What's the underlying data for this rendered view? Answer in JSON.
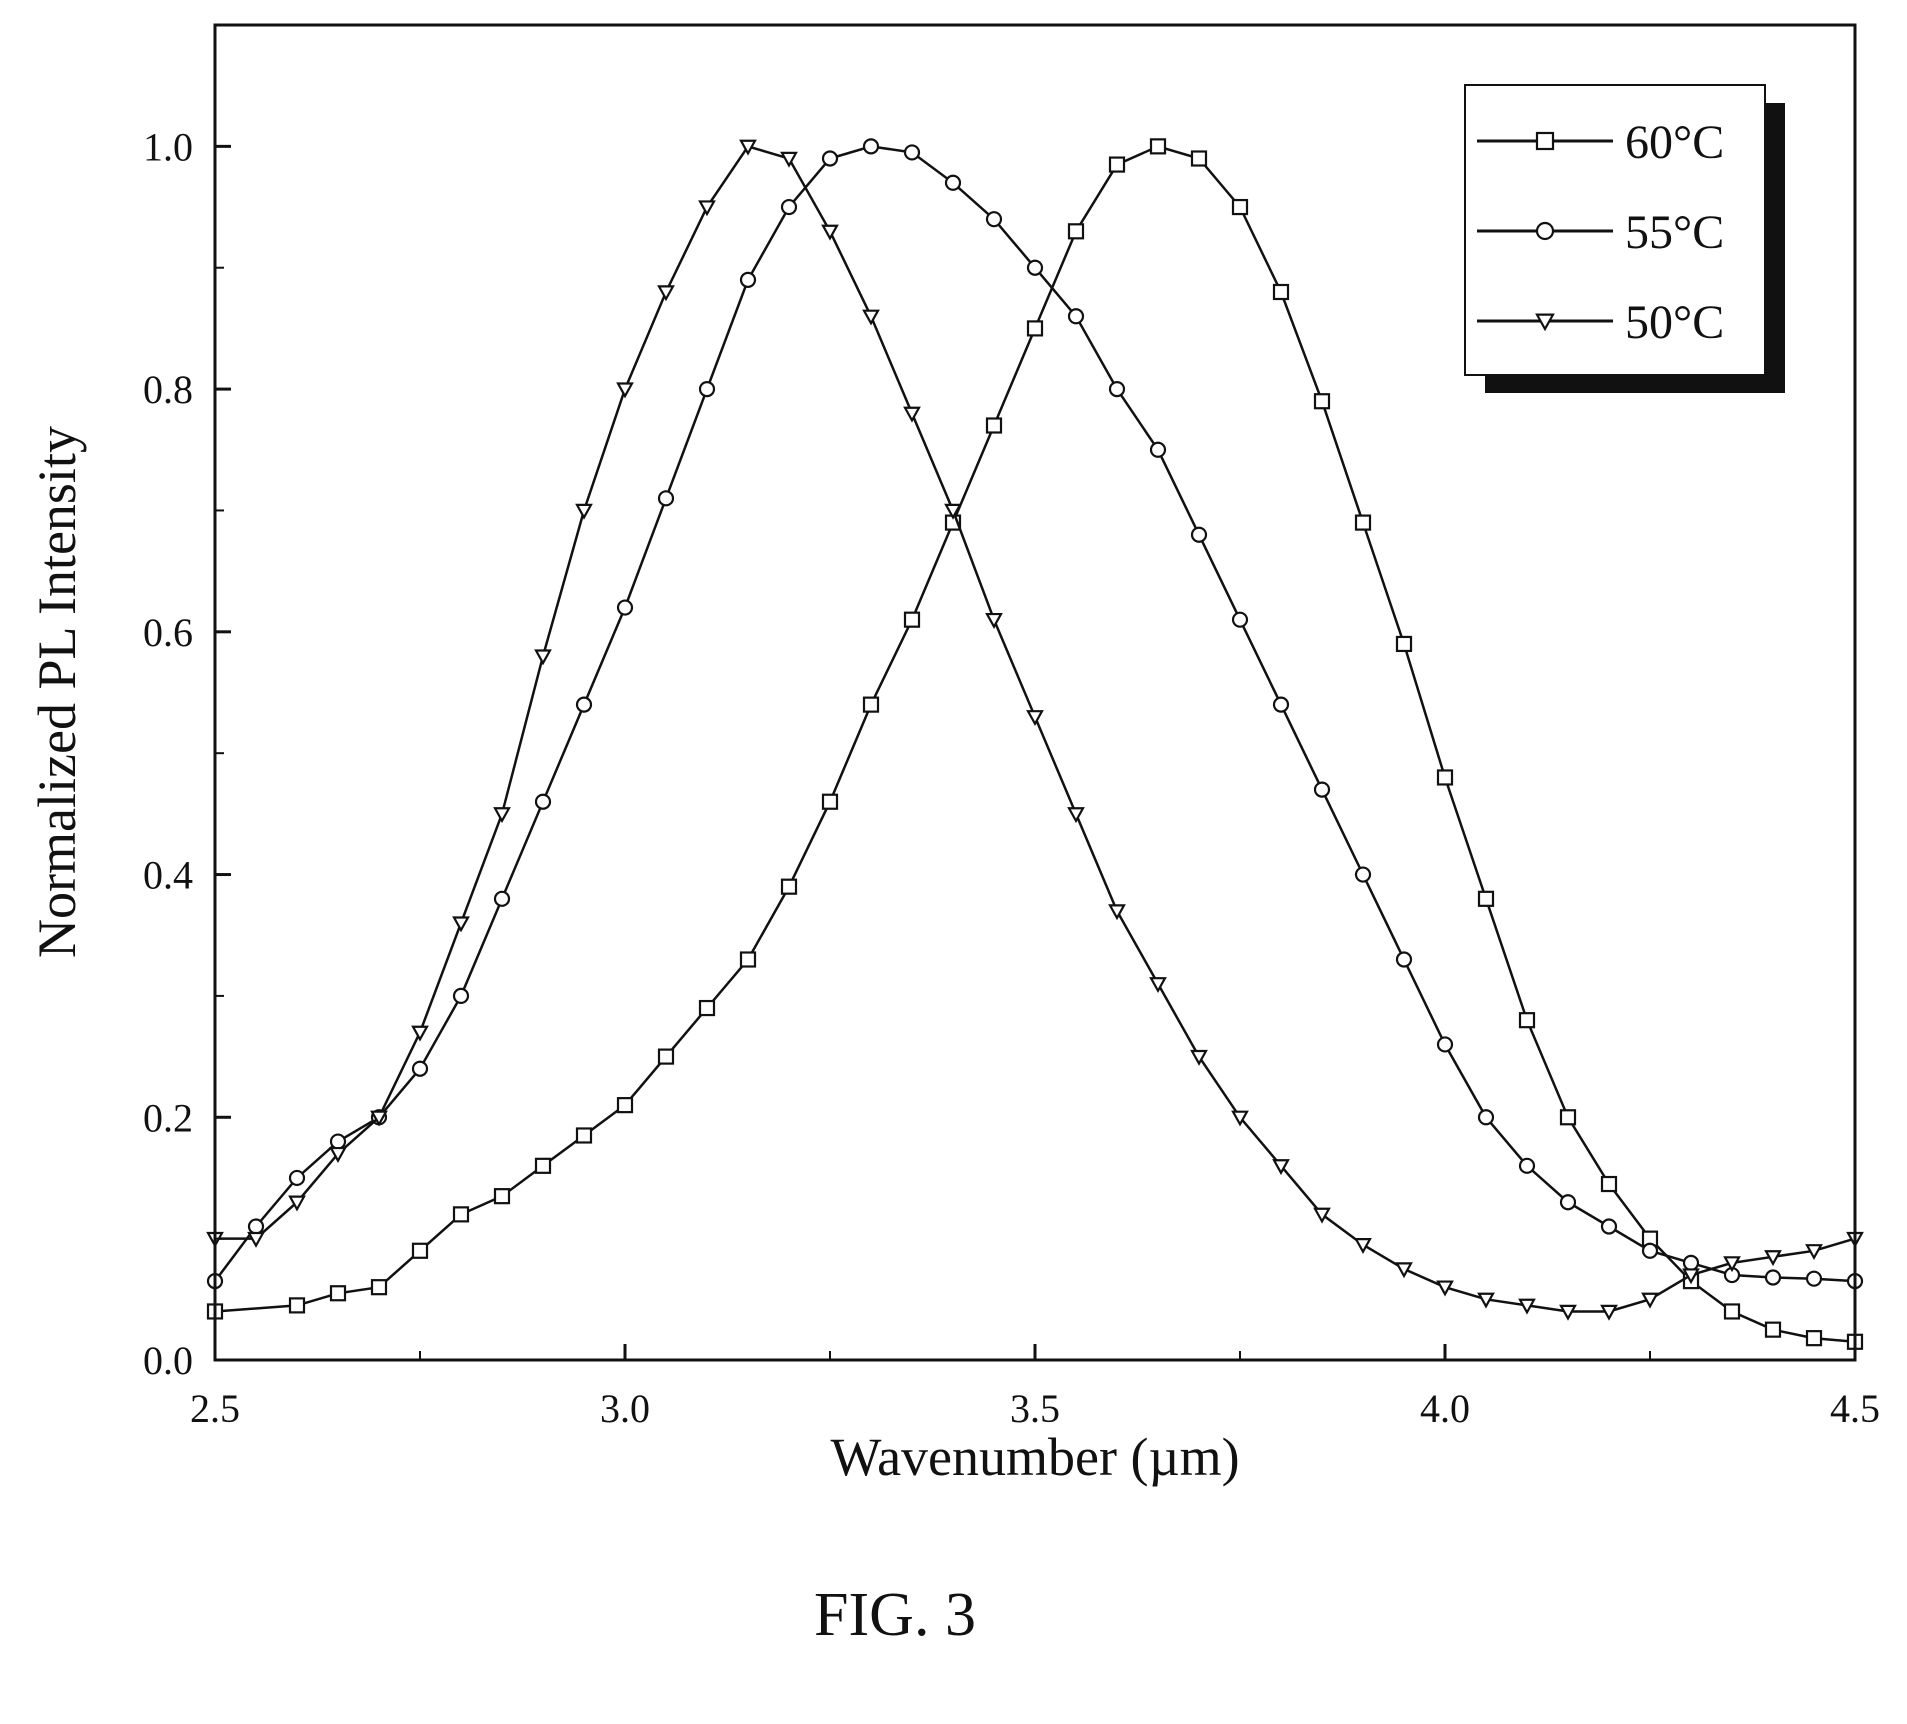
{
  "chart_data": {
    "type": "line",
    "title": "",
    "xlabel": "Wavenumber (µm)",
    "ylabel": "Normalized PL Intensity",
    "xlim": [
      2.5,
      4.5
    ],
    "ylim": [
      0.0,
      1.1
    ],
    "x_ticks": [
      "2.5",
      "3.0",
      "3.5",
      "4.0",
      "4.5"
    ],
    "y_ticks": [
      "0.0",
      "0.2",
      "0.4",
      "0.6",
      "0.8",
      "1.0"
    ],
    "grid": false,
    "legend_position": "top-right",
    "series": [
      {
        "name": "60°C",
        "marker": "square",
        "color": "#111111",
        "x": [
          2.5,
          2.6,
          2.65,
          2.7,
          2.75,
          2.8,
          2.85,
          2.9,
          2.95,
          3.0,
          3.05,
          3.1,
          3.15,
          3.2,
          3.25,
          3.3,
          3.35,
          3.4,
          3.45,
          3.5,
          3.55,
          3.6,
          3.65,
          3.7,
          3.75,
          3.8,
          3.85,
          3.9,
          3.95,
          4.0,
          4.05,
          4.1,
          4.15,
          4.2,
          4.25,
          4.3,
          4.35,
          4.4,
          4.45,
          4.5
        ],
        "y": [
          0.04,
          0.045,
          0.055,
          0.06,
          0.09,
          0.12,
          0.135,
          0.16,
          0.185,
          0.21,
          0.25,
          0.29,
          0.33,
          0.39,
          0.46,
          0.54,
          0.61,
          0.69,
          0.77,
          0.85,
          0.93,
          0.985,
          1.0,
          0.99,
          0.95,
          0.88,
          0.79,
          0.69,
          0.59,
          0.48,
          0.38,
          0.28,
          0.2,
          0.145,
          0.1,
          0.065,
          0.04,
          0.025,
          0.018,
          0.015
        ]
      },
      {
        "name": "55°C",
        "marker": "circle",
        "color": "#111111",
        "x": [
          2.5,
          2.55,
          2.6,
          2.65,
          2.7,
          2.75,
          2.8,
          2.85,
          2.9,
          2.95,
          3.0,
          3.05,
          3.1,
          3.15,
          3.2,
          3.25,
          3.3,
          3.35,
          3.4,
          3.45,
          3.5,
          3.55,
          3.6,
          3.65,
          3.7,
          3.75,
          3.8,
          3.85,
          3.9,
          3.95,
          4.0,
          4.05,
          4.1,
          4.15,
          4.2,
          4.25,
          4.3,
          4.35,
          4.4,
          4.45,
          4.5
        ],
        "y": [
          0.065,
          0.11,
          0.15,
          0.18,
          0.2,
          0.24,
          0.3,
          0.38,
          0.46,
          0.54,
          0.62,
          0.71,
          0.8,
          0.89,
          0.95,
          0.99,
          1.0,
          0.995,
          0.97,
          0.94,
          0.9,
          0.86,
          0.8,
          0.75,
          0.68,
          0.61,
          0.54,
          0.47,
          0.4,
          0.33,
          0.26,
          0.2,
          0.16,
          0.13,
          0.11,
          0.09,
          0.08,
          0.07,
          0.068,
          0.067,
          0.065
        ]
      },
      {
        "name": "50°C",
        "marker": "triangle-down",
        "color": "#111111",
        "x": [
          2.5,
          2.55,
          2.6,
          2.65,
          2.7,
          2.75,
          2.8,
          2.85,
          2.9,
          2.95,
          3.0,
          3.05,
          3.1,
          3.15,
          3.2,
          3.25,
          3.3,
          3.35,
          3.4,
          3.45,
          3.5,
          3.55,
          3.6,
          3.65,
          3.7,
          3.75,
          3.8,
          3.85,
          3.9,
          3.95,
          4.0,
          4.05,
          4.1,
          4.15,
          4.2,
          4.25,
          4.3,
          4.35,
          4.4,
          4.45,
          4.5
        ],
        "y": [
          0.1,
          0.1,
          0.13,
          0.17,
          0.2,
          0.27,
          0.36,
          0.45,
          0.58,
          0.7,
          0.8,
          0.88,
          0.95,
          1.0,
          0.99,
          0.93,
          0.86,
          0.78,
          0.7,
          0.61,
          0.53,
          0.45,
          0.37,
          0.31,
          0.25,
          0.2,
          0.16,
          0.12,
          0.095,
          0.075,
          0.06,
          0.05,
          0.045,
          0.04,
          0.04,
          0.05,
          0.07,
          0.08,
          0.085,
          0.09,
          0.1
        ]
      }
    ]
  },
  "caption": "FIG. 3"
}
